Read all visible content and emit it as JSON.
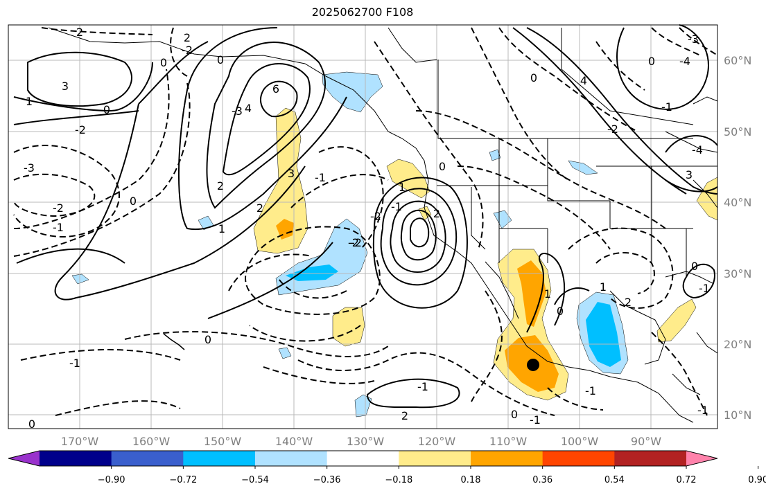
{
  "title": "2025062700 F108",
  "map": {
    "lon_ticks": [
      "170°W",
      "160°W",
      "150°W",
      "140°W",
      "130°W",
      "120°W",
      "110°W",
      "100°W",
      "90°W"
    ],
    "lat_ticks": [
      "60°N",
      "50°N",
      "40°N",
      "30°N",
      "20°N",
      "10°N"
    ],
    "extent": {
      "lon": [
        -180,
        -80
      ],
      "lat": [
        8,
        65
      ]
    },
    "marker": {
      "lon": -106,
      "lat": 17,
      "color": "#000000"
    }
  },
  "colorbar": {
    "colors": [
      "#9932cc",
      "#00008b",
      "#3a5fcd",
      "#00bfff",
      "#b0e2ff",
      "#ffffff",
      "#ffec8b",
      "#ffa500",
      "#ff4500",
      "#b22222",
      "#ff82ab"
    ],
    "labels": [
      "−0.90",
      "−0.72",
      "−0.54",
      "−0.36",
      "−0.18",
      "0.18",
      "0.36",
      "0.54",
      "0.72",
      "0.90"
    ]
  },
  "contour_labels": [
    "2",
    "2",
    "-2",
    "0",
    "3",
    "1",
    "0",
    "-2",
    "-3",
    "-2",
    "0",
    "-1",
    "0",
    "-1",
    "1",
    "2",
    "0",
    "-3",
    "6",
    "4",
    "3",
    "2",
    "-1",
    "1",
    "-2",
    "-2",
    "0",
    "-1",
    "2",
    "-1",
    "2",
    "0",
    "0",
    "-1",
    "1",
    "4",
    "-3",
    "-4",
    "0",
    "-1",
    "3",
    "-2",
    "0",
    "-4",
    "0",
    "-1",
    "1",
    "2",
    "-2",
    "0",
    "-1",
    "-1"
  ]
}
